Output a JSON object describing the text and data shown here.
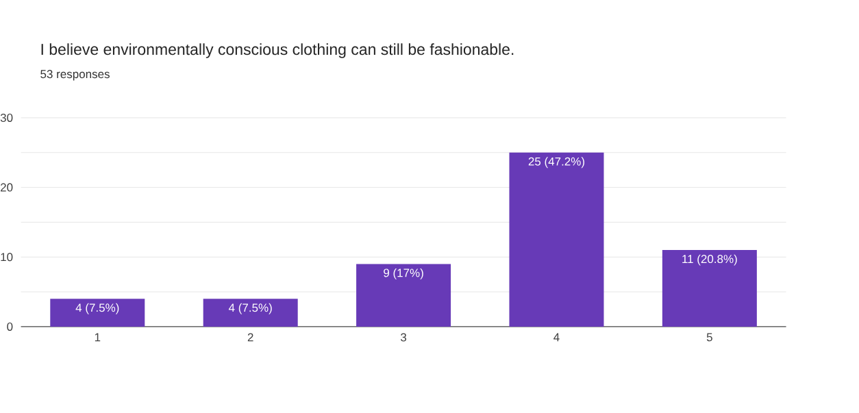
{
  "chart_data": {
    "type": "bar",
    "title": "I believe environmentally conscious clothing can still be fashionable.",
    "subtitle": "53 responses",
    "categories": [
      "1",
      "2",
      "3",
      "4",
      "5"
    ],
    "values": [
      4,
      4,
      9,
      25,
      11
    ],
    "value_labels": [
      "4 (7.5%)",
      "4 (7.5%)",
      "9 (17%)",
      "25 (47.2%)",
      "11 (20.8%)"
    ],
    "color": "#673ab7",
    "ylim": [
      0,
      30
    ],
    "yticks": [
      0,
      {
        "value": 5,
        "label": null
      },
      10,
      {
        "value": 15,
        "label": null
      },
      20,
      {
        "value": 25,
        "label": null
      },
      30
    ],
    "grid": "y"
  }
}
